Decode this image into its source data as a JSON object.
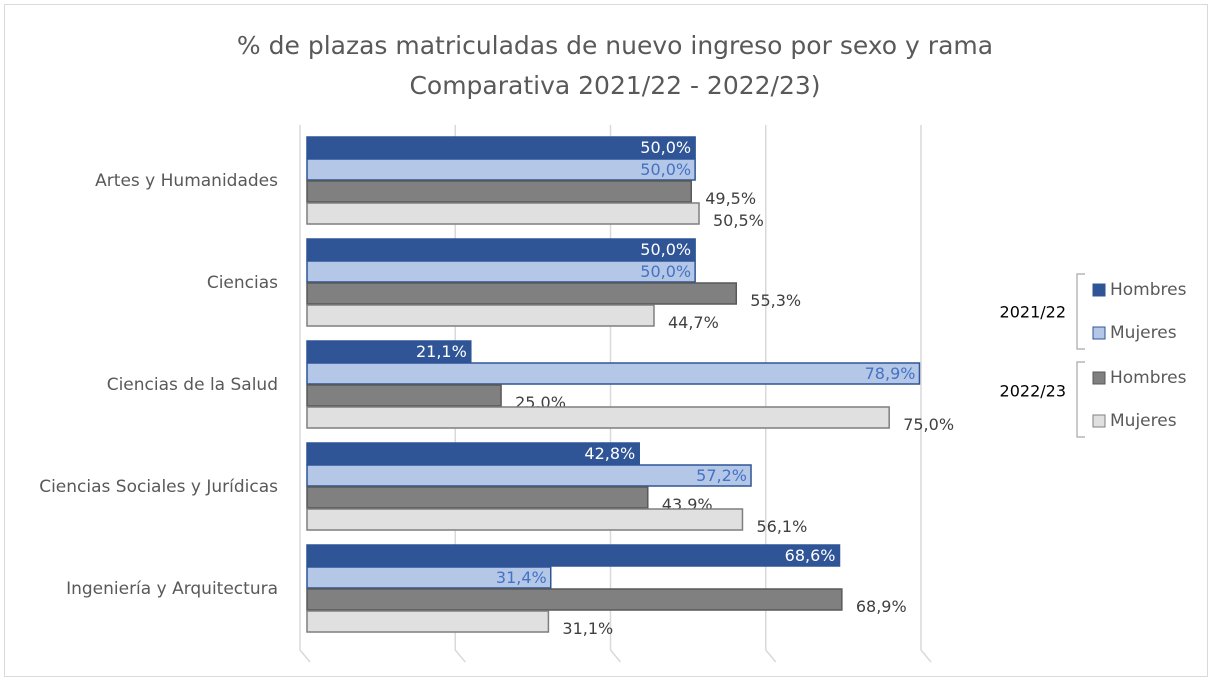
{
  "chart_data": {
    "type": "barh",
    "title": "% de plazas matriculadas de nuevo ingreso por sexo y rama",
    "subtitle": "Comparativa 2021/22 - 2022/23)",
    "categories": [
      "Artes y Humanidades",
      "Ciencias",
      "Ciencias de la Salud",
      "Ciencias Sociales y Jurídicas",
      "Ingeniería y Arquitectura"
    ],
    "series": [
      {
        "name": "Hombres",
        "group": "2021/22",
        "color": "#2f5597",
        "values": [
          50.0,
          50.0,
          21.1,
          42.8,
          68.6
        ],
        "value_labels": [
          "50,0%",
          "50,0%",
          "21,1%",
          "42,8%",
          "68,6%"
        ]
      },
      {
        "name": "Mujeres",
        "group": "2021/22",
        "color": "#b4c7e7",
        "values": [
          50.0,
          50.0,
          78.9,
          57.2,
          31.4
        ],
        "value_labels": [
          "50,0%",
          "50,0%",
          "78,9%",
          "57,2%",
          "31,4%"
        ]
      },
      {
        "name": "Hombres",
        "group": "2022/23",
        "color": "#808080",
        "values": [
          49.5,
          55.3,
          25.0,
          43.9,
          68.9
        ],
        "value_labels": [
          "49,5%",
          "55,3%",
          "25,0%",
          "43,9%",
          "68,9%"
        ]
      },
      {
        "name": "Mujeres",
        "group": "2022/23",
        "color": "#e0e0e0",
        "values": [
          50.5,
          44.7,
          75.0,
          56.1,
          31.1
        ],
        "value_labels": [
          "50,5%",
          "44,7%",
          "75,0%",
          "56,1%",
          "31,1%"
        ]
      }
    ],
    "xlim": [
      0,
      80
    ],
    "xticks": [
      0,
      20,
      40,
      60,
      80
    ],
    "grid": true,
    "legend": "right"
  }
}
